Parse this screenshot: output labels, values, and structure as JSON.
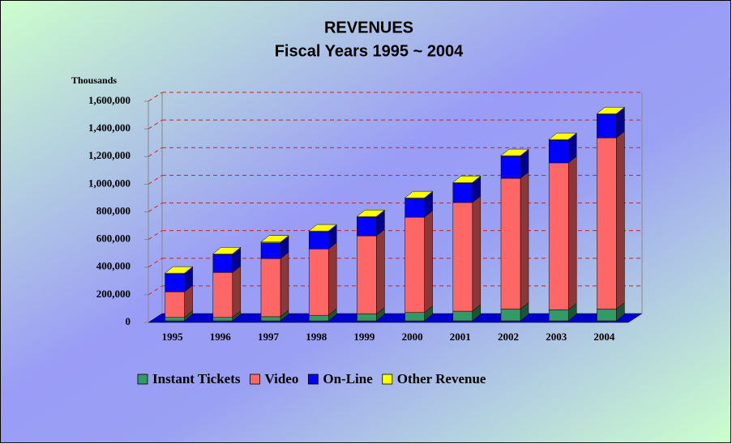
{
  "chart_data": {
    "type": "bar3d_stacked",
    "title": "REVENUES",
    "subtitle": "Fiscal Years 1995 ~ 2004",
    "y_axis_label": "Thousands",
    "categories": [
      "1995",
      "1996",
      "1997",
      "1998",
      "1999",
      "2000",
      "2001",
      "2002",
      "2003",
      "2004"
    ],
    "series": [
      {
        "name": "Instant Tickets",
        "color": "#339966",
        "values": [
          25000,
          25000,
          30000,
          40000,
          50000,
          60000,
          70000,
          85000,
          80000,
          85000
        ]
      },
      {
        "name": "Video",
        "color": "#ff6666",
        "values": [
          185000,
          325000,
          420000,
          480000,
          565000,
          690000,
          786000,
          946000,
          1063000,
          1239000
        ]
      },
      {
        "name": "On-Line",
        "color": "#0000ff",
        "values": [
          130000,
          130000,
          115000,
          125000,
          135000,
          135000,
          140000,
          159000,
          164000,
          170000
        ]
      },
      {
        "name": "Other Revenue",
        "color": "#ffff00",
        "values": [
          5000,
          5000,
          5000,
          5000,
          5000,
          5000,
          5000,
          5000,
          5000,
          5000
        ]
      }
    ],
    "ylim": [
      0,
      1600000
    ],
    "yticks": [
      0,
      {
        "value": 200000,
        "label": "200,000"
      },
      {
        "value": 400000,
        "label": "400,000"
      },
      {
        "value": 600000,
        "label": "600,000"
      },
      {
        "value": 800000,
        "label": "800,000"
      },
      {
        "value": 1000000,
        "label": "1,000,000"
      },
      {
        "value": 1200000,
        "label": "1,200,000"
      },
      {
        "value": 1400000,
        "label": "1,400,000"
      },
      {
        "value": 1600000,
        "label": "1,600,000"
      }
    ],
    "grid": true,
    "legend": "bottom"
  }
}
